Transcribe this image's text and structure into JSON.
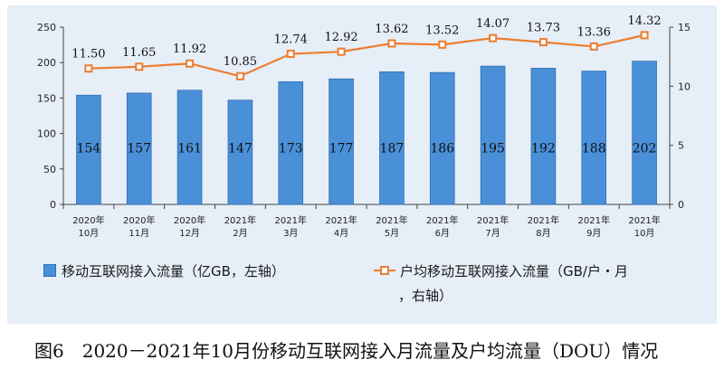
{
  "chart_data": {
    "type": "bar+line",
    "categories": [
      [
        "2020年",
        "10月"
      ],
      [
        "2020年",
        "11月"
      ],
      [
        "2020年",
        "12月"
      ],
      [
        "2021年",
        "2月"
      ],
      [
        "2021年",
        "3月"
      ],
      [
        "2021年",
        "4月"
      ],
      [
        "2021年",
        "5月"
      ],
      [
        "2021年",
        "6月"
      ],
      [
        "2021年",
        "7月"
      ],
      [
        "2021年",
        "8月"
      ],
      [
        "2021年",
        "9月"
      ],
      [
        "2021年",
        "10月"
      ]
    ],
    "series": [
      {
        "name": "移动互联网接入流量（亿GB，左轴）",
        "type": "bar",
        "axis": "left",
        "values": [
          154,
          157,
          161,
          147,
          173,
          177,
          187,
          186,
          195,
          192,
          188,
          202
        ],
        "labels": [
          "154",
          "157",
          "161",
          "147",
          "173",
          "177",
          "187",
          "186",
          "195",
          "192",
          "188",
          "202"
        ]
      },
      {
        "name": "户均移动互联网接入流量（GB/户・月，右轴）",
        "type": "line",
        "axis": "right",
        "values": [
          11.5,
          11.65,
          11.92,
          10.85,
          12.74,
          12.92,
          13.62,
          13.52,
          14.07,
          13.73,
          13.36,
          14.32
        ],
        "labels": [
          "11.50",
          "11.65",
          "11.92",
          "10.85",
          "12.74",
          "12.92",
          "13.62",
          "13.52",
          "14.07",
          "13.73",
          "13.36",
          "14.32"
        ]
      }
    ],
    "y_left": {
      "min": 0,
      "max": 250,
      "ticks": [
        "0",
        "50",
        "100",
        "150",
        "200",
        "250"
      ]
    },
    "y_right": {
      "min": 0,
      "max": 15,
      "ticks": [
        "0",
        "5",
        "10",
        "15"
      ]
    },
    "legend": {
      "bar_label": "移动互联网接入流量（亿GB，左轴）",
      "line_label_1": "户均移动互联网接入流量（GB/户・月",
      "line_label_2": "，右轴）"
    },
    "colors": {
      "bar": "#4a90d9",
      "bar_edge": "#2f6fb3",
      "line": "#ed7d31",
      "marker_fill": "#ffffff",
      "background": "#e6eef7"
    },
    "grid": false
  },
  "caption": "图6　2020－2021年10月份移动互联网接入月流量及户均流量（DOU）情况"
}
